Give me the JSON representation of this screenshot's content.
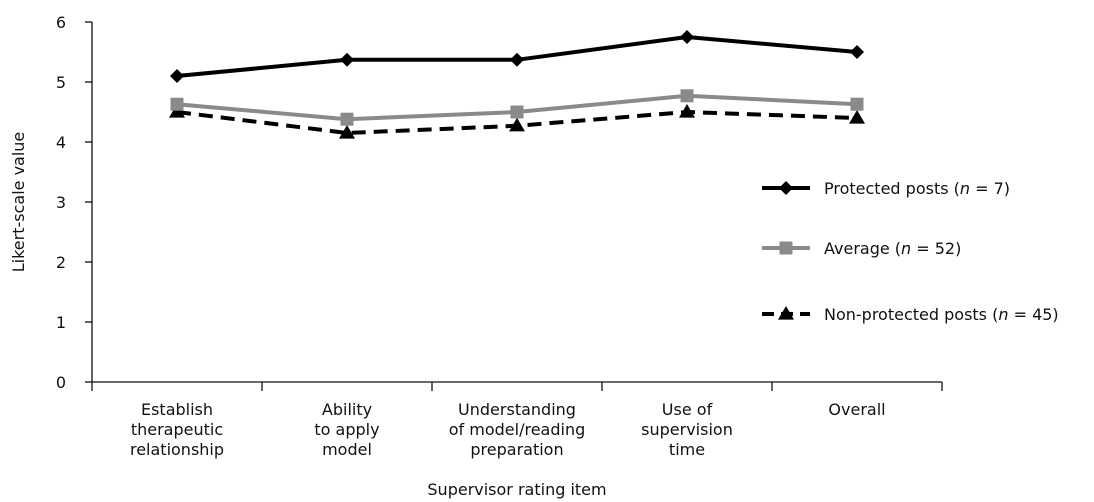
{
  "chart_data": {
    "type": "line",
    "xlabel": "Supervisor rating item",
    "ylabel": "Likert-scale value",
    "ylim": [
      0,
      6
    ],
    "yticks": [
      0,
      1,
      2,
      3,
      4,
      5,
      6
    ],
    "grid": false,
    "legend_position": "right",
    "categories": [
      [
        "Establish",
        "therapeutic",
        "relationship"
      ],
      [
        "Ability",
        "to apply",
        "model"
      ],
      [
        "Understanding",
        "of model/reading",
        "preparation"
      ],
      [
        "Use of",
        "supervision",
        "time"
      ],
      [
        "Overall"
      ]
    ],
    "series": [
      {
        "name_parts": [
          "Protected posts (",
          "n",
          " = 7)"
        ],
        "values": [
          5.1,
          5.37,
          5.37,
          5.75,
          5.5
        ],
        "color": "#000000",
        "marker": "diamond",
        "dash": "solid"
      },
      {
        "name_parts": [
          "Average (",
          "n",
          " = 52)"
        ],
        "values": [
          4.63,
          4.38,
          4.5,
          4.77,
          4.63
        ],
        "color": "#8a8a8a",
        "marker": "square",
        "dash": "solid"
      },
      {
        "name_parts": [
          "Non-protected posts (",
          "n",
          " = 45)"
        ],
        "values": [
          4.5,
          4.15,
          4.27,
          4.5,
          4.4
        ],
        "color": "#000000",
        "marker": "triangle",
        "dash": "dashed"
      }
    ]
  }
}
